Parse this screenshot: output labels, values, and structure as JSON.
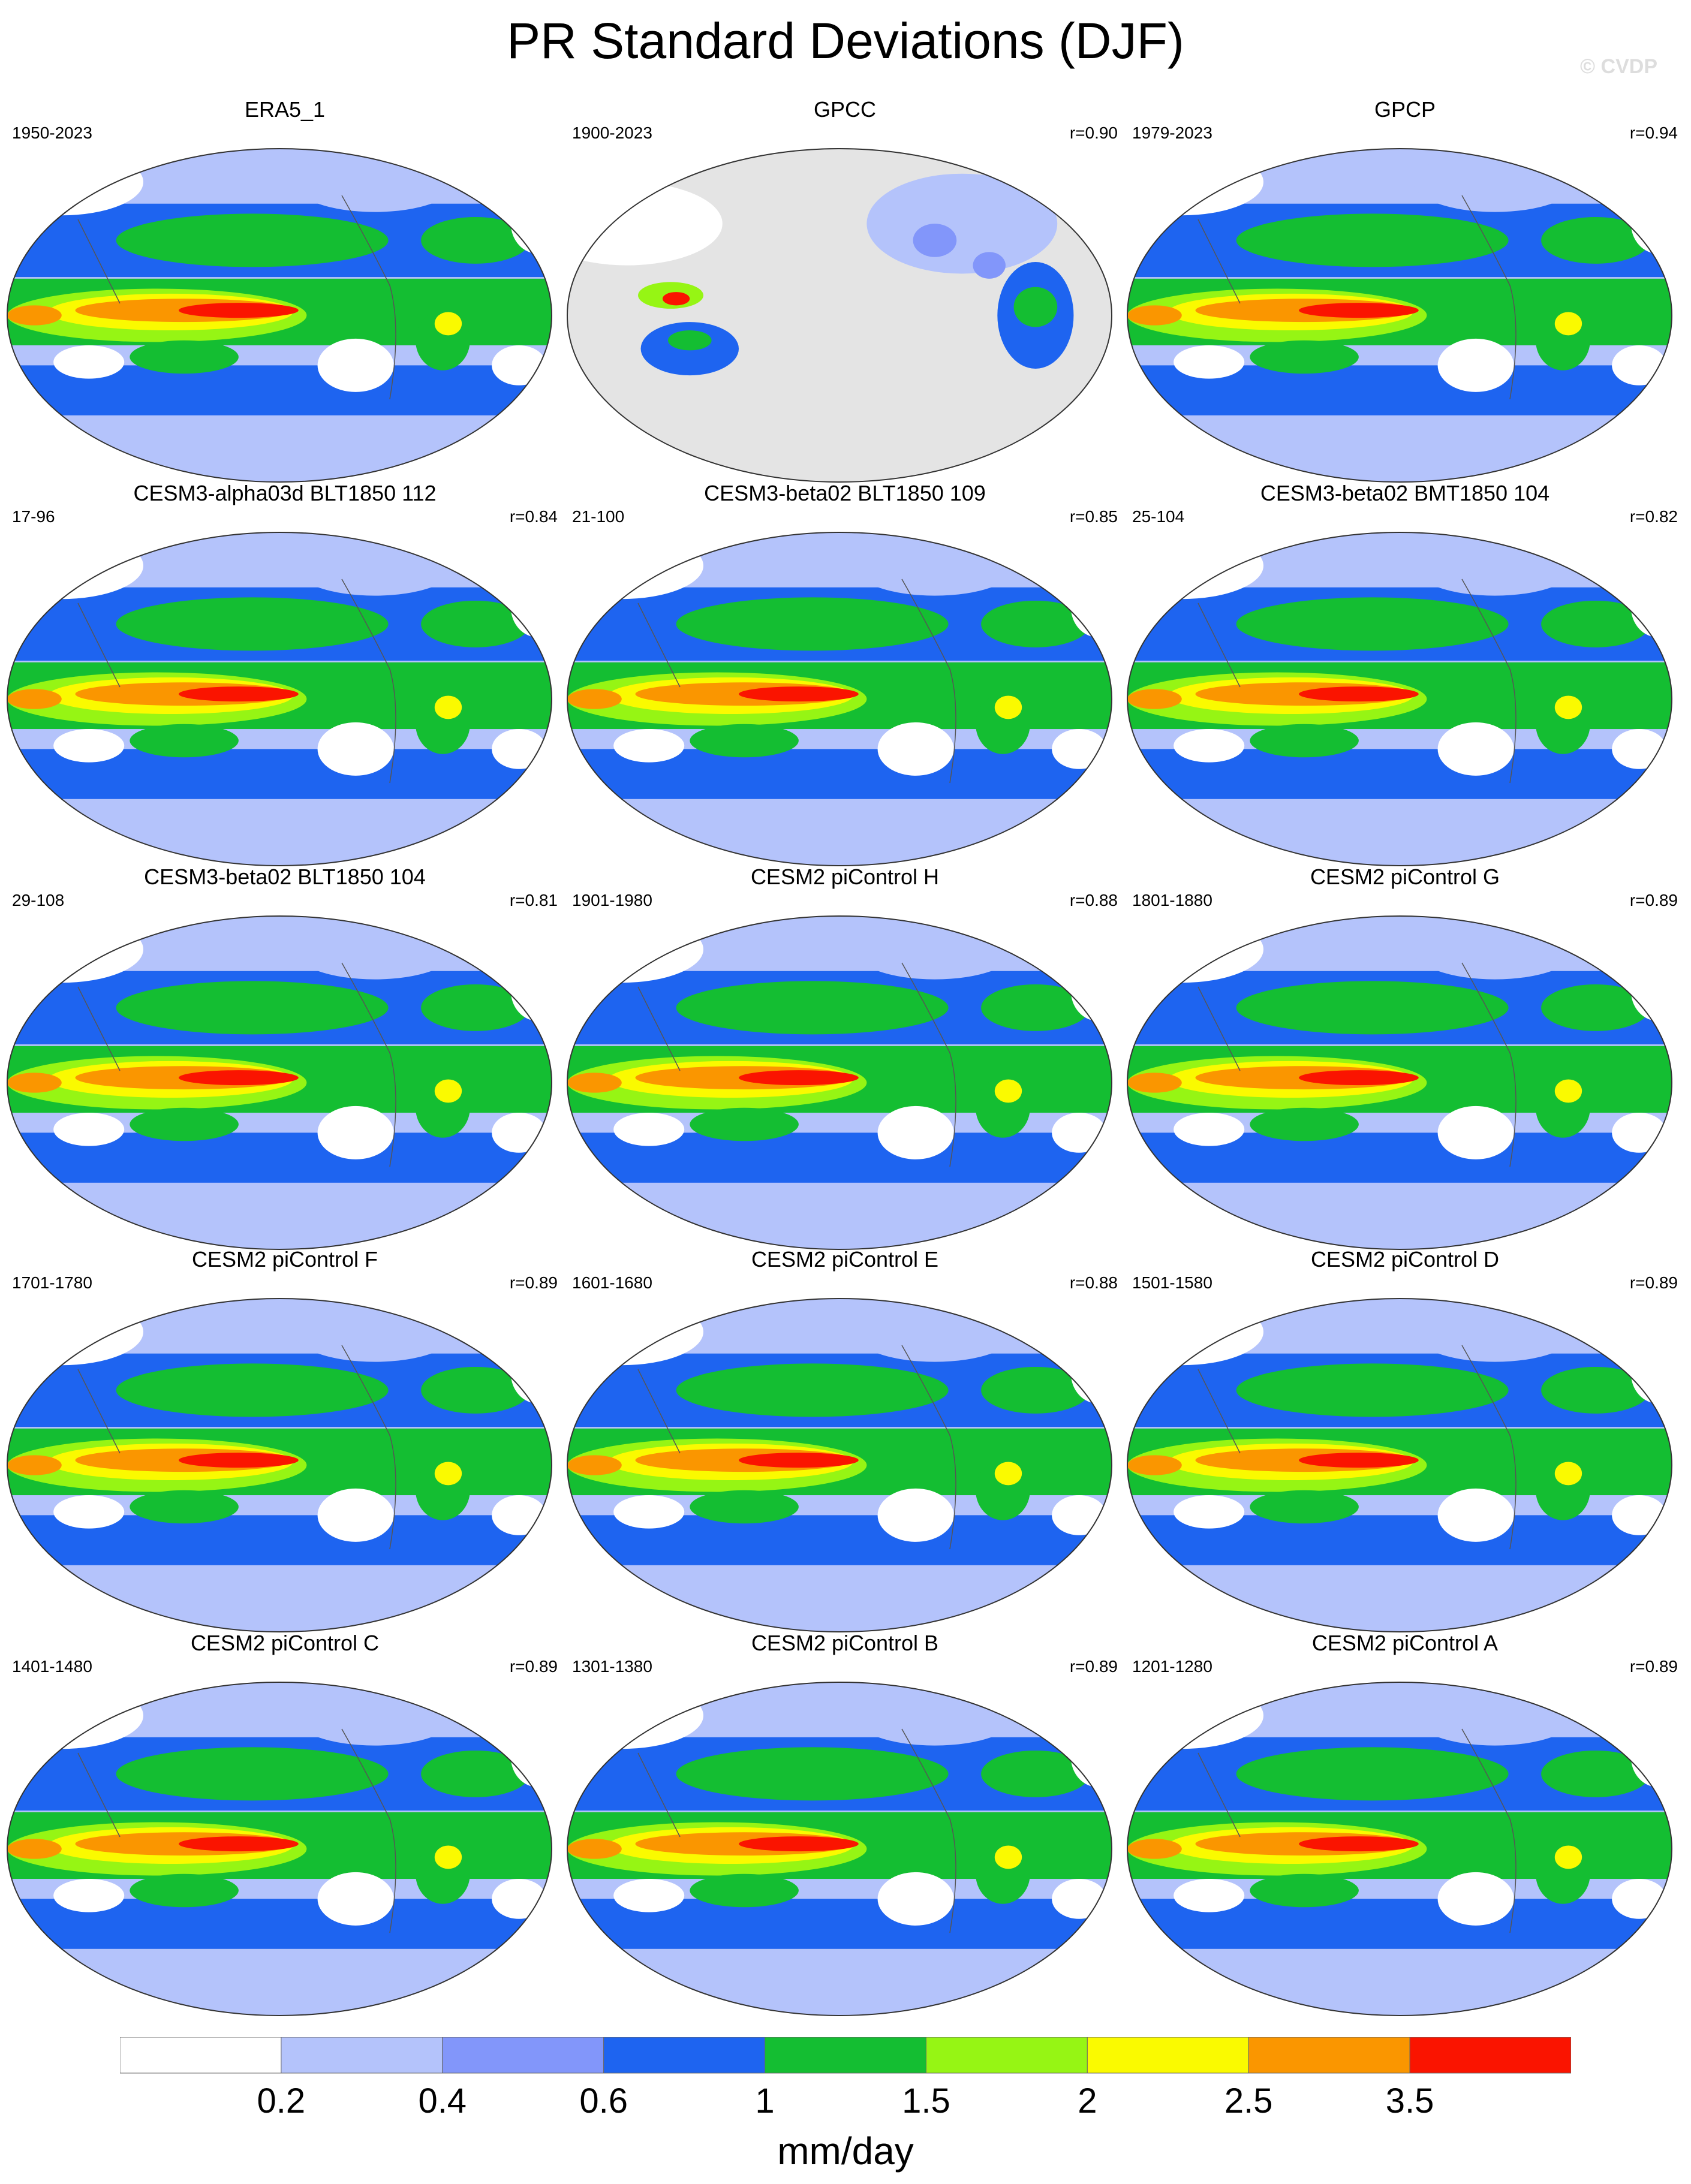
{
  "title": "PR Standard Deviations (DJF)",
  "watermark": "© CVDP",
  "chart_data": {
    "type": "heatmap",
    "projection": "robinson-like global maps, Pacific-centered",
    "season": "DJF",
    "variable": "PR",
    "units": "mm/day",
    "colorbar": {
      "levels": [
        "0.2",
        "0.4",
        "0.6",
        "1",
        "1.5",
        "2",
        "2.5",
        "3.5"
      ],
      "colors": [
        "#ffffff",
        "#b4c3fb",
        "#8296fa",
        "#1e64f0",
        "#14be32",
        "#96f514",
        "#fafa00",
        "#fa9600",
        "#fa1400"
      ]
    },
    "panels": [
      {
        "title": "ERA5_1",
        "years": "1950-2023",
        "r": ""
      },
      {
        "title": "GPCC",
        "years": "1900-2023",
        "r": "r=0.90",
        "land_only": true
      },
      {
        "title": "GPCP",
        "years": "1979-2023",
        "r": "r=0.94"
      },
      {
        "title": "CESM3-alpha03d BLT1850 112",
        "years": "17-96",
        "r": "r=0.84"
      },
      {
        "title": "CESM3-beta02 BLT1850 109",
        "years": "21-100",
        "r": "r=0.85"
      },
      {
        "title": "CESM3-beta02 BMT1850 104",
        "years": "25-104",
        "r": "r=0.82"
      },
      {
        "title": "CESM3-beta02 BLT1850 104",
        "years": "29-108",
        "r": "r=0.81"
      },
      {
        "title": "CESM2 piControl H",
        "years": "1901-1980",
        "r": "r=0.88"
      },
      {
        "title": "CESM2 piControl G",
        "years": "1801-1880",
        "r": "r=0.89"
      },
      {
        "title": "CESM2 piControl F",
        "years": "1701-1780",
        "r": "r=0.89"
      },
      {
        "title": "CESM2 piControl E",
        "years": "1601-1680",
        "r": "r=0.88"
      },
      {
        "title": "CESM2 piControl D",
        "years": "1501-1580",
        "r": "r=0.89"
      },
      {
        "title": "CESM2 piControl C",
        "years": "1401-1480",
        "r": "r=0.89"
      },
      {
        "title": "CESM2 piControl B",
        "years": "1301-1380",
        "r": "r=0.89"
      },
      {
        "title": "CESM2 piControl A",
        "years": "1201-1280",
        "r": "r=0.89"
      }
    ]
  }
}
